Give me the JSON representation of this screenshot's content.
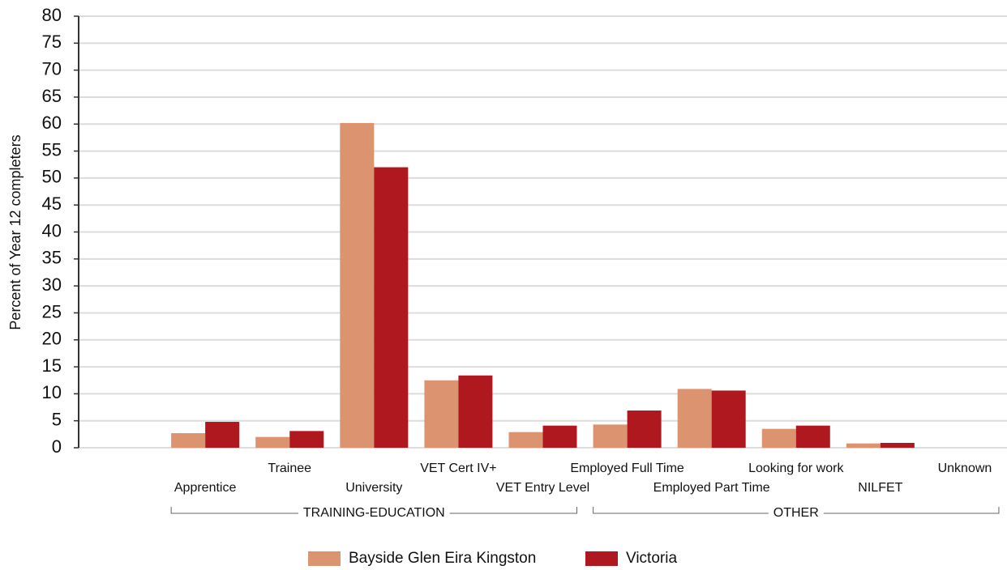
{
  "chart_data": {
    "type": "bar",
    "y_label": "Percent of Year 12 completers",
    "categories": [
      "Apprentice",
      "Trainee",
      "University",
      "VET Cert IV+",
      "VET Entry Level",
      "Employed Full Time",
      "Employed Part Time",
      "Looking for work",
      "NILFET",
      "Unknown"
    ],
    "series": [
      {
        "name": "Bayside Glen Eira Kingston",
        "color": "#dc9470",
        "values": [
          2.7,
          2.0,
          60.2,
          12.5,
          2.9,
          4.3,
          10.9,
          3.5,
          0.8,
          0
        ]
      },
      {
        "name": "Victoria",
        "color": "#b01820",
        "values": [
          4.8,
          3.1,
          52.0,
          13.4,
          4.1,
          6.9,
          10.6,
          4.1,
          0.9,
          0
        ]
      }
    ],
    "groups": [
      {
        "label": "TRAINING-EDUCATION",
        "span": 5
      },
      {
        "label": "OTHER",
        "span": 5
      }
    ],
    "ylim": [
      0,
      80
    ],
    "yticks": [
      0,
      5,
      10,
      15,
      20,
      25,
      30,
      35,
      40,
      45,
      50,
      55,
      60,
      65,
      70,
      75,
      80
    ],
    "grid": true,
    "legend": "bottom"
  }
}
